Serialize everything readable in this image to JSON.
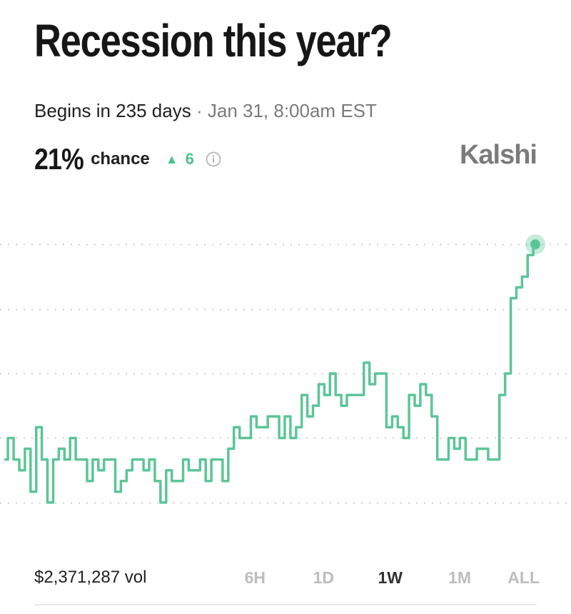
{
  "market": {
    "title": "Recession this year?",
    "begins": "Begins in 235 days",
    "separator": "·",
    "date": "Jan 31, 8:00am EST",
    "chance_value": "21%",
    "chance_label": "chance",
    "change_arrow": "▲",
    "change_value": "6",
    "info_icon": "info-circle-icon",
    "brand": "Kalshi"
  },
  "footer": {
    "volume": "$2,371,287 vol",
    "ranges": [
      {
        "label": "6H",
        "active": false
      },
      {
        "label": "1D",
        "active": false
      },
      {
        "label": "1W",
        "active": true
      },
      {
        "label": "1M",
        "active": false
      },
      {
        "label": "ALL",
        "active": false
      }
    ]
  },
  "colors": {
    "line": "#5cc597",
    "accent": "#4fc28a",
    "grid": "#cfcfcf",
    "brand": "#7b7b7b"
  },
  "chart_data": {
    "type": "line",
    "title": "",
    "xlabel": "",
    "ylabel": "",
    "grid": true,
    "ylim": [
      8,
      23
    ],
    "gridlines": [
      9,
      12,
      15,
      18,
      21
    ],
    "series": [
      {
        "values": [
          11,
          12,
          11,
          10.5,
          11.5,
          9.5,
          12.5,
          11,
          9,
          11,
          11.5,
          11,
          12,
          11,
          11,
          10,
          11,
          10.5,
          11,
          11,
          9.5,
          10,
          10.5,
          11,
          11,
          10.5,
          11,
          10,
          9,
          10.5,
          10,
          10,
          11,
          10.5,
          10.5,
          11,
          10,
          11,
          11,
          10,
          11.5,
          12.5,
          12,
          12,
          13,
          12.5,
          12.5,
          13,
          13,
          12,
          13,
          12,
          12.5,
          14,
          13,
          13.5,
          14.5,
          14,
          15,
          14,
          13.5,
          14,
          14,
          14,
          15.5,
          14.5,
          15,
          15,
          12.5,
          13,
          12.5,
          12,
          14,
          13.5,
          14.5,
          14,
          13,
          11,
          11,
          12,
          11.5,
          12,
          11,
          11,
          11.5,
          11.5,
          11,
          11,
          14,
          15,
          18.5,
          19,
          19.5,
          20.5,
          21
        ]
      }
    ]
  }
}
